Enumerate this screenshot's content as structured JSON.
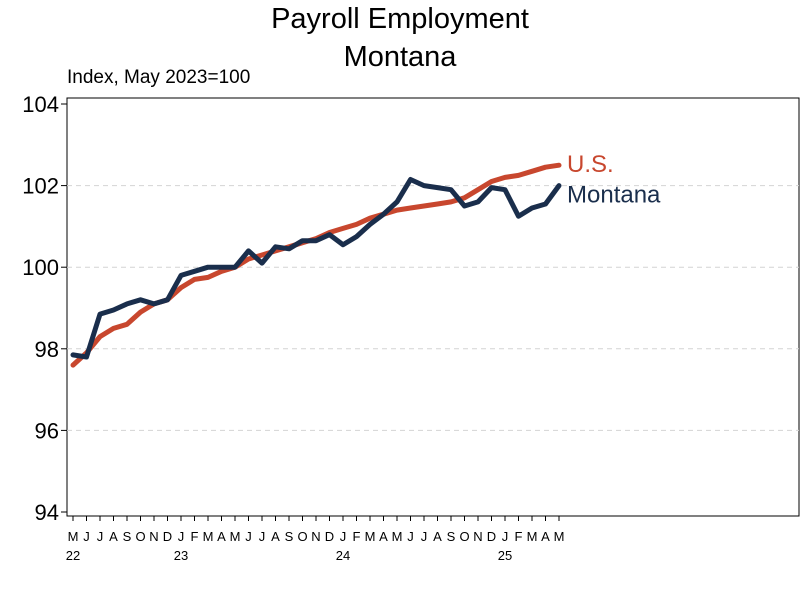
{
  "chart_data": {
    "type": "line",
    "title": "Payroll Employment",
    "subtitle": "Montana",
    "ylabel": "Index, May 2023=100",
    "ylim": [
      94,
      104
    ],
    "yticks": [
      "94",
      "96",
      "98",
      "100",
      "102",
      "104"
    ],
    "grid": true,
    "x_month_labels": [
      "M",
      "J",
      "J",
      "A",
      "S",
      "O",
      "N",
      "D",
      "J",
      "F",
      "M",
      "A",
      "M",
      "J",
      "J",
      "A",
      "S",
      "O",
      "N",
      "D",
      "J",
      "F",
      "M",
      "A",
      "M",
      "J",
      "J",
      "A",
      "S",
      "O",
      "N",
      "D",
      "J",
      "F",
      "M",
      "A",
      "M"
    ],
    "x_year_labels": [
      {
        "label": "22",
        "month_index": 0
      },
      {
        "label": "23",
        "month_index": 8
      },
      {
        "label": "24",
        "month_index": 20
      },
      {
        "label": "25",
        "month_index": 32
      }
    ],
    "series": [
      {
        "name": "U.S.",
        "color": "#c8472e",
        "values": [
          97.6,
          97.9,
          98.3,
          98.5,
          98.6,
          98.9,
          99.1,
          99.2,
          99.5,
          99.7,
          99.75,
          99.9,
          100.0,
          100.2,
          100.3,
          100.4,
          100.5,
          100.6,
          100.7,
          100.85,
          100.95,
          101.05,
          101.2,
          101.3,
          101.4,
          101.45,
          101.5,
          101.55,
          101.6,
          101.7,
          101.9,
          102.1,
          102.2,
          102.25,
          102.35,
          102.45,
          102.5
        ]
      },
      {
        "name": "Montana",
        "color": "#1a2e4c",
        "values": [
          97.85,
          97.8,
          98.85,
          98.95,
          99.1,
          99.2,
          99.1,
          99.2,
          99.8,
          99.9,
          100.0,
          100.0,
          100.0,
          100.4,
          100.1,
          100.5,
          100.45,
          100.65,
          100.65,
          100.8,
          100.55,
          100.75,
          101.05,
          101.3,
          101.6,
          102.15,
          102.0,
          101.95,
          101.9,
          101.5,
          101.6,
          101.95,
          101.9,
          101.25,
          101.45,
          101.55,
          102.0
        ]
      }
    ]
  }
}
